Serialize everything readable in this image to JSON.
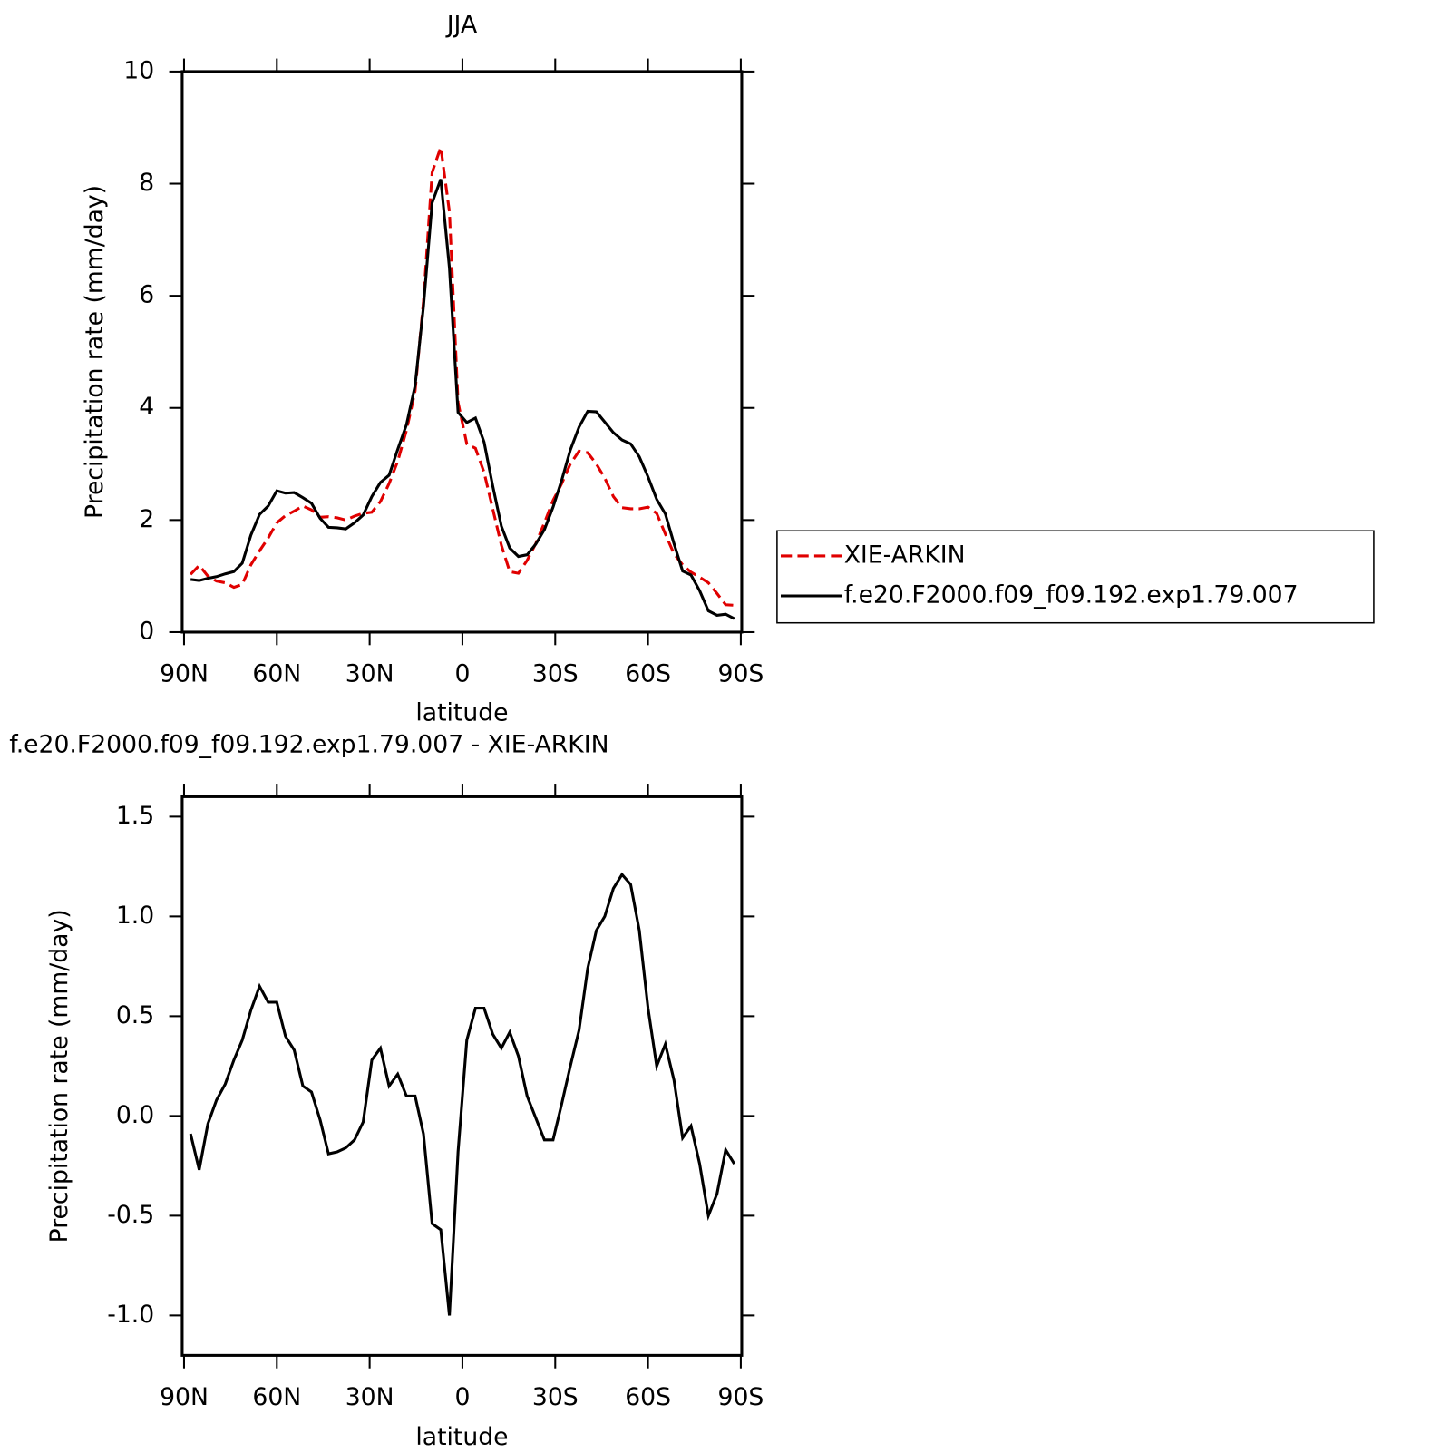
{
  "chart_data": [
    {
      "type": "line",
      "title": "JJA",
      "x_label": "latitude",
      "y_label": "Precipitation rate (mm/day)",
      "x": [
        87.9,
        85.1,
        82.3,
        79.5,
        76.7,
        73.9,
        71.2,
        68.4,
        65.6,
        62.8,
        60.0,
        57.2,
        54.4,
        51.6,
        48.8,
        46.0,
        43.3,
        40.5,
        37.7,
        34.9,
        32.1,
        29.3,
        26.5,
        23.7,
        20.9,
        18.1,
        15.3,
        12.6,
        9.8,
        7.0,
        4.2,
        1.4,
        -1.4,
        -4.2,
        -7.0,
        -9.8,
        -12.6,
        -15.3,
        -18.1,
        -20.9,
        -23.7,
        -26.5,
        -29.3,
        -32.1,
        -34.9,
        -37.7,
        -40.5,
        -43.3,
        -46.0,
        -48.8,
        -51.6,
        -54.4,
        -57.2,
        -60.0,
        -62.8,
        -65.6,
        -68.4,
        -71.2,
        -73.9,
        -76.7,
        -79.5,
        -82.3,
        -85.1,
        -87.9
      ],
      "series": [
        {
          "name": "XIE-ARKIN",
          "color": "#e00000",
          "style": "dashed",
          "values": [
            1.03,
            1.19,
            1.0,
            0.91,
            0.88,
            0.8,
            0.85,
            1.2,
            1.45,
            1.68,
            1.95,
            2.08,
            2.16,
            2.25,
            2.18,
            2.05,
            2.06,
            2.04,
            2.0,
            2.07,
            2.12,
            2.14,
            2.33,
            2.65,
            3.05,
            3.6,
            4.3,
            5.9,
            8.2,
            8.65,
            7.5,
            4.1,
            3.36,
            3.28,
            2.85,
            2.2,
            1.55,
            1.08,
            1.05,
            1.28,
            1.58,
            1.95,
            2.35,
            2.65,
            3.0,
            3.23,
            3.2,
            3.0,
            2.75,
            2.42,
            2.22,
            2.2,
            2.2,
            2.23,
            2.12,
            1.75,
            1.4,
            1.2,
            1.07,
            0.98,
            0.88,
            0.69,
            0.49,
            0.48
          ]
        },
        {
          "name": "f.e20.F2000.f09_f09.192.exp1.79.007",
          "color": "#000000",
          "style": "solid",
          "values": [
            0.94,
            0.92,
            0.96,
            0.99,
            1.04,
            1.08,
            1.23,
            1.73,
            2.1,
            2.25,
            2.52,
            2.48,
            2.49,
            2.4,
            2.3,
            2.03,
            1.87,
            1.86,
            1.84,
            1.95,
            2.09,
            2.42,
            2.67,
            2.8,
            3.26,
            3.7,
            4.4,
            5.81,
            7.66,
            8.08,
            6.5,
            3.92,
            3.74,
            3.82,
            3.39,
            2.61,
            1.89,
            1.5,
            1.35,
            1.38,
            1.57,
            1.83,
            2.23,
            2.71,
            3.25,
            3.66,
            3.94,
            3.93,
            3.75,
            3.56,
            3.43,
            3.36,
            3.13,
            2.77,
            2.37,
            2.11,
            1.58,
            1.09,
            1.02,
            0.74,
            0.38,
            0.3,
            0.32,
            0.24
          ]
        }
      ],
      "xlim": [
        90.6,
        -90.3
      ],
      "ylim": [
        0,
        10
      ],
      "xticks": [
        {
          "value": 90,
          "label": "90N"
        },
        {
          "value": 60,
          "label": "60N"
        },
        {
          "value": 30,
          "label": "30N"
        },
        0,
        {
          "value": -30,
          "label": "30S"
        },
        {
          "value": -60,
          "label": "60S"
        },
        {
          "value": -90,
          "label": "90S"
        }
      ],
      "yticks": [
        0,
        2,
        4,
        6,
        8,
        10
      ]
    },
    {
      "type": "line",
      "title": "f.e20.F2000.f09_f09.192.exp1.79.007 - XIE-ARKIN",
      "x_label": "latitude",
      "y_label": "Precipitation rate (mm/day)",
      "x": [
        87.9,
        85.1,
        82.3,
        79.5,
        76.7,
        73.9,
        71.2,
        68.4,
        65.6,
        62.8,
        60.0,
        57.2,
        54.4,
        51.6,
        48.8,
        46.0,
        43.3,
        40.5,
        37.7,
        34.9,
        32.1,
        29.3,
        26.5,
        23.7,
        20.9,
        18.1,
        15.3,
        12.6,
        9.8,
        7.0,
        4.2,
        1.4,
        -1.4,
        -4.2,
        -7.0,
        -9.8,
        -12.6,
        -15.3,
        -18.1,
        -20.9,
        -23.7,
        -26.5,
        -29.3,
        -32.1,
        -34.9,
        -37.7,
        -40.5,
        -43.3,
        -46.0,
        -48.8,
        -51.6,
        -54.4,
        -57.2,
        -60.0,
        -62.8,
        -65.6,
        -68.4,
        -71.2,
        -73.9,
        -76.7,
        -79.5,
        -82.3,
        -85.1,
        -87.9
      ],
      "series": [
        {
          "color": "#000000",
          "style": "solid",
          "values": [
            -0.09,
            -0.27,
            -0.04,
            0.08,
            0.16,
            0.28,
            0.38,
            0.53,
            0.65,
            0.57,
            0.57,
            0.4,
            0.33,
            0.15,
            0.12,
            -0.02,
            -0.19,
            -0.18,
            -0.16,
            -0.12,
            -0.03,
            0.28,
            0.34,
            0.15,
            0.21,
            0.1,
            0.1,
            -0.09,
            -0.54,
            -0.57,
            -1.0,
            -0.18,
            0.38,
            0.54,
            0.54,
            0.41,
            0.34,
            0.42,
            0.3,
            0.1,
            -0.01,
            -0.12,
            -0.12,
            0.06,
            0.25,
            0.43,
            0.74,
            0.93,
            1.0,
            1.14,
            1.21,
            1.16,
            0.93,
            0.54,
            0.25,
            0.36,
            0.18,
            -0.11,
            -0.05,
            -0.24,
            -0.5,
            -0.39,
            -0.17,
            -0.24
          ]
        }
      ],
      "xlim": [
        90.6,
        -90.3
      ],
      "ylim": [
        -1.2,
        1.6
      ],
      "xticks": [
        {
          "value": 90,
          "label": "90N"
        },
        {
          "value": 60,
          "label": "60N"
        },
        {
          "value": 30,
          "label": "30N"
        },
        0,
        {
          "value": -30,
          "label": "30S"
        },
        {
          "value": -60,
          "label": "60S"
        },
        {
          "value": -90,
          "label": "90S"
        }
      ],
      "yticks": [
        {
          "value": -1.0,
          "label": "-1.0"
        },
        -0.5,
        {
          "value": 0.0,
          "label": "0.0"
        },
        0.5,
        {
          "value": 1.0,
          "label": "1.0"
        },
        1.5
      ]
    }
  ]
}
